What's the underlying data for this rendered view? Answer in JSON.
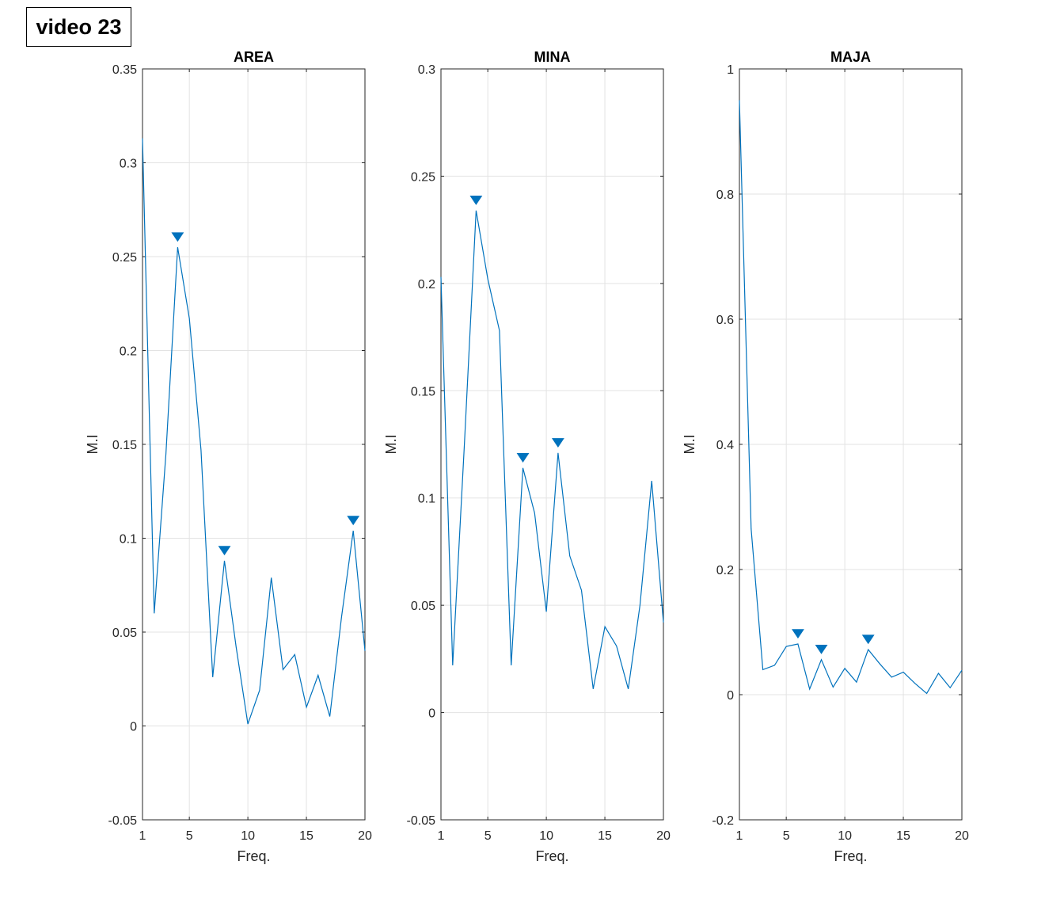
{
  "figure": {
    "label": "video 23"
  },
  "chart_data": [
    {
      "type": "line",
      "title": "AREA",
      "xlabel": "Freq.",
      "ylabel": "M.I",
      "xlim": [
        1,
        20
      ],
      "ylim": [
        -0.05,
        0.35
      ],
      "xticks": [
        1,
        5,
        10,
        15,
        20
      ],
      "yticks": [
        -0.05,
        0,
        0.05,
        0.1,
        0.15,
        0.2,
        0.25,
        0.3,
        0.35
      ],
      "ytick_labels": [
        "-0.05",
        "0",
        "0.05",
        "0.1",
        "0.15",
        "0.2",
        "0.25",
        "0.3",
        "0.35"
      ],
      "grid": true,
      "color": "#0072BD",
      "x": [
        1,
        2,
        3,
        4,
        5,
        6,
        7,
        8,
        9,
        10,
        11,
        12,
        13,
        14,
        15,
        16,
        17,
        18,
        19,
        20
      ],
      "y": [
        0.313,
        0.06,
        0.145,
        0.255,
        0.217,
        0.147,
        0.026,
        0.088,
        0.042,
        0.001,
        0.019,
        0.079,
        0.03,
        0.038,
        0.01,
        0.027,
        0.005,
        0.058,
        0.104,
        0.04
      ],
      "peaks": [
        4,
        8,
        19
      ]
    },
    {
      "type": "line",
      "title": "MINA",
      "xlabel": "Freq.",
      "ylabel": "M.I",
      "xlim": [
        1,
        20
      ],
      "ylim": [
        -0.05,
        0.3
      ],
      "xticks": [
        1,
        5,
        10,
        15,
        20
      ],
      "yticks": [
        -0.05,
        0,
        0.05,
        0.1,
        0.15,
        0.2,
        0.25,
        0.3
      ],
      "ytick_labels": [
        "-0.05",
        "0",
        "0.05",
        "0.1",
        "0.15",
        "0.2",
        "0.25",
        "0.3"
      ],
      "grid": true,
      "color": "#0072BD",
      "x": [
        1,
        2,
        3,
        4,
        5,
        6,
        7,
        8,
        9,
        10,
        11,
        12,
        13,
        14,
        15,
        16,
        17,
        18,
        19,
        20
      ],
      "y": [
        0.203,
        0.022,
        0.125,
        0.234,
        0.202,
        0.178,
        0.022,
        0.114,
        0.093,
        0.047,
        0.121,
        0.073,
        0.057,
        0.011,
        0.04,
        0.031,
        0.011,
        0.05,
        0.108,
        0.042
      ],
      "peaks": [
        4,
        8,
        11
      ]
    },
    {
      "type": "line",
      "title": "MAJA",
      "xlabel": "Freq.",
      "ylabel": "M.I",
      "xlim": [
        1,
        20
      ],
      "ylim": [
        -0.2,
        1
      ],
      "xticks": [
        1,
        5,
        10,
        15,
        20
      ],
      "yticks": [
        -0.2,
        0,
        0.2,
        0.4,
        0.6,
        0.8,
        1
      ],
      "ytick_labels": [
        "-0.2",
        "0",
        "0.2",
        "0.4",
        "0.6",
        "0.8",
        "1"
      ],
      "grid": true,
      "color": "#0072BD",
      "x": [
        1,
        2,
        3,
        4,
        5,
        6,
        7,
        8,
        9,
        10,
        11,
        12,
        13,
        14,
        15,
        16,
        17,
        18,
        19,
        20
      ],
      "y": [
        0.95,
        0.265,
        0.04,
        0.047,
        0.077,
        0.081,
        0.009,
        0.056,
        0.012,
        0.042,
        0.02,
        0.072,
        0.049,
        0.028,
        0.036,
        0.018,
        0.002,
        0.034,
        0.011,
        0.039
      ],
      "peaks": [
        6,
        8,
        12
      ]
    }
  ]
}
